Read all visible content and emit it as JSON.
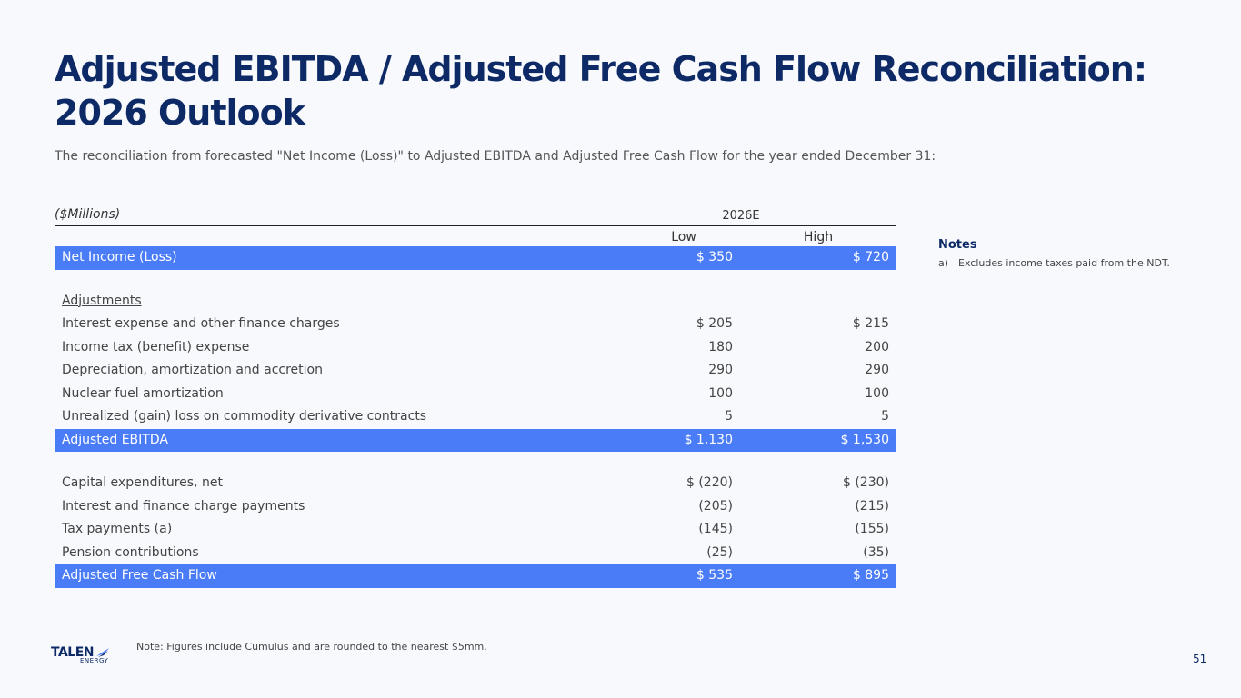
{
  "title": "Adjusted EBITDA / Adjusted Free Cash Flow Reconciliation: 2026 Outlook",
  "subtitle": "The reconciliation from forecasted \"Net Income (Loss)\" to Adjusted EBITDA and Adjusted Free Cash Flow for the year ended December 31:",
  "table": {
    "units": "($Millions)",
    "year": "2026E",
    "col_low": "Low",
    "col_high": "High",
    "net_income": {
      "label": "Net Income (Loss)",
      "low": "$ 350",
      "high": "$ 720"
    },
    "adjustments_label": "Adjustments",
    "adjustments": [
      {
        "label": "Interest expense and other finance charges",
        "low": "$ 205",
        "high": "$ 215"
      },
      {
        "label": "Income tax (benefit) expense",
        "low": "180",
        "high": "200"
      },
      {
        "label": "Depreciation, amortization and accretion",
        "low": "290",
        "high": "290"
      },
      {
        "label": "Nuclear fuel amortization",
        "low": "100",
        "high": "100"
      },
      {
        "label": "Unrealized (gain) loss on commodity derivative contracts",
        "low": "5",
        "high": "5"
      }
    ],
    "adjusted_ebitda": {
      "label": "Adjusted EBITDA",
      "low": "$ 1,130",
      "high": "$ 1,530"
    },
    "cash_items": [
      {
        "label": "Capital expenditures, net",
        "low": "$ (220)",
        "high": "$ (230)"
      },
      {
        "label": "Interest and finance charge payments",
        "low": "(205)",
        "high": "(215)"
      },
      {
        "label": "Tax payments (a)",
        "low": "(145)",
        "high": "(155)"
      },
      {
        "label": "Pension contributions",
        "low": "(25)",
        "high": "(35)"
      }
    ],
    "adjusted_fcf": {
      "label": "Adjusted Free Cash Flow",
      "low": "$ 535",
      "high": "$ 895"
    }
  },
  "notes": {
    "title": "Notes",
    "items": [
      {
        "marker": "a)",
        "text": "Excludes income taxes paid from the NDT."
      }
    ]
  },
  "footnote": "Note: Figures include Cumulus and are rounded to the nearest $5mm.",
  "logo": {
    "main": "TALEN",
    "sub": "ENERGY"
  },
  "page_number": "51",
  "colors": {
    "title": "#0d2a66",
    "highlight_row": "#4a7cf7"
  }
}
